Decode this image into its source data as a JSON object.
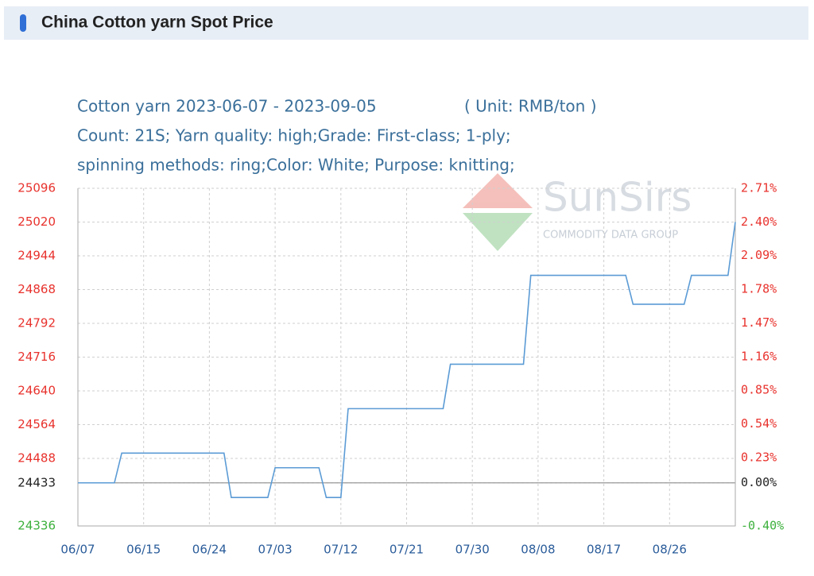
{
  "header": {
    "title": "China Cotton yarn Spot Price"
  },
  "chart_data": {
    "type": "line",
    "title": "Cotton yarn 2023-06-07 - 2023-09-05",
    "unit": "( Unit: RMB/ton )",
    "notes": [
      "Count: 21S; Yarn quality: high;Grade: First-class; 1-ply;",
      "spinning methods: ring;Color: White; Purpose: knitting;"
    ],
    "watermark": {
      "name": "SunSirs",
      "tagline": "COMMODITY DATA GROUP"
    },
    "categories": [
      "06/07",
      null,
      null,
      null,
      null,
      null,
      null,
      null,
      null,
      "06/15",
      null,
      null,
      null,
      null,
      null,
      null,
      null,
      null,
      "06/24",
      null,
      null,
      null,
      null,
      null,
      null,
      null,
      null,
      "07/03",
      null,
      null,
      null,
      null,
      null,
      null,
      null,
      null,
      "07/12",
      null,
      null,
      null,
      null,
      null,
      null,
      null,
      null,
      "07/21",
      null,
      null,
      null,
      null,
      null,
      null,
      null,
      null,
      "07/30",
      null,
      null,
      null,
      null,
      null,
      null,
      null,
      null,
      "08/08",
      null,
      null,
      null,
      null,
      null,
      null,
      null,
      null,
      "08/17",
      null,
      null,
      null,
      null,
      null,
      null,
      null,
      null,
      "08/26",
      null,
      null,
      null,
      null,
      null,
      null,
      null,
      null,
      null
    ],
    "values": [
      24433,
      24433,
      24433,
      24433,
      24433,
      24433,
      24500,
      24500,
      24500,
      24500,
      24500,
      24500,
      24500,
      24500,
      24500,
      24500,
      24500,
      24500,
      24500,
      24500,
      24500,
      24400,
      24400,
      24400,
      24400,
      24400,
      24400,
      24467,
      24467,
      24467,
      24467,
      24467,
      24467,
      24467,
      24400,
      24400,
      24400,
      24600,
      24600,
      24600,
      24600,
      24600,
      24600,
      24600,
      24600,
      24600,
      24600,
      24600,
      24600,
      24600,
      24600,
      24700,
      24700,
      24700,
      24700,
      24700,
      24700,
      24700,
      24700,
      24700,
      24700,
      24700,
      24900,
      24900,
      24900,
      24900,
      24900,
      24900,
      24900,
      24900,
      24900,
      24900,
      24900,
      24900,
      24900,
      24900,
      24835,
      24835,
      24835,
      24835,
      24835,
      24835,
      24835,
      24835,
      24900,
      24900,
      24900,
      24900,
      24900,
      24900,
      25020
    ],
    "color": "#5b9bd5",
    "baseline": 24433,
    "ylim": [
      24336,
      25096
    ],
    "yticks": [
      24336,
      24433,
      24488,
      24564,
      24640,
      24716,
      24792,
      24868,
      24944,
      25020,
      25096
    ],
    "y2lim": [
      -0.4,
      2.71
    ],
    "y2ticks": [
      {
        "value": -0.4,
        "label": "-0.40%"
      },
      {
        "value": 0.0,
        "label": "0.00%"
      },
      {
        "value": 0.23,
        "label": "0.23%"
      },
      {
        "value": 0.54,
        "label": "0.54%"
      },
      {
        "value": 0.85,
        "label": "0.85%"
      },
      {
        "value": 1.16,
        "label": "1.16%"
      },
      {
        "value": 1.47,
        "label": "1.47%"
      },
      {
        "value": 1.78,
        "label": "1.78%"
      },
      {
        "value": 2.09,
        "label": "2.09%"
      },
      {
        "value": 2.4,
        "label": "2.40%"
      },
      {
        "value": 2.71,
        "label": "2.71%"
      }
    ],
    "up_color": "#e8322d",
    "down_color": "#3cb03c",
    "base_color": "#222222",
    "grid": true
  }
}
